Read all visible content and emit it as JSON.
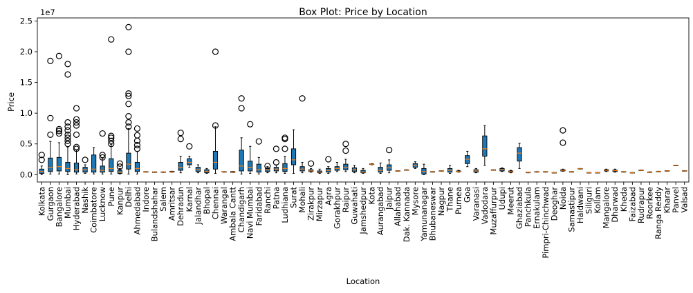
{
  "chart_data": {
    "type": "box",
    "title": "Box Plot: Price by Location",
    "xlabel": "Location",
    "ylabel": "Price",
    "y_offset_label": "1e7",
    "ylim": [
      -1200000,
      25500000
    ],
    "y_ticks": [
      0,
      5000000,
      10000000,
      15000000,
      20000000,
      25000000
    ],
    "y_tick_labels": [
      "0.0",
      "0.5",
      "1.0",
      "1.5",
      "2.0",
      "2.5"
    ],
    "grid": false,
    "colors": {
      "box": "#1f77b4",
      "median": "#ff7f0e",
      "whisker": "#000000",
      "flier": "#000000"
    },
    "categories": [
      "Kolkata",
      "Gurgaon",
      "Bangalore",
      "Mumbai",
      "Hyderabad",
      "Nashik",
      "Coimbatore",
      "Lucknow",
      "Pune",
      "Kanpur",
      "Delhi",
      "Ahmedabad",
      "Indore",
      "Bulandshahar",
      "Salem",
      "Amritsar",
      "Dehradun",
      "Karnal",
      "Jalandhar",
      "Bhopal",
      "Chennai",
      "Warangal",
      "Ambala Cantt",
      "Chandigarh",
      "Navi Mumbai",
      "Faridabad",
      "Ranchi",
      "Patna",
      "Ludhiana",
      "Surat",
      "Mohali",
      "Zirakpur",
      "Mirzapur",
      "Agra",
      "Gorakhpur",
      "Raipur",
      "Guwahati",
      "Jamshedpur",
      "Kota",
      "Aurangabad",
      "Jaipur",
      "Allahabad",
      "Dak. Kannada",
      "Mysore",
      "Yamunanagar",
      "Bhubaneswar",
      "Nagpur",
      "Thane",
      "Purnea",
      "Goa",
      "Varanasi",
      "Vadodara",
      "Muzaffurpur",
      "Udupi",
      "Meerut",
      "Ghaziabad",
      "Panchkula",
      "Ernakulam",
      "Pimpri-Chinchwad",
      "Deoghar",
      "Noida",
      "Samastipur",
      "Haldwani",
      "Siliguri",
      "Kollam",
      "Mangalore",
      "Dharwad",
      "Kheda",
      "Faizabad",
      "Rudrapur",
      "Roorkee",
      "Ranga Reddy",
      "Kharar",
      "Panvel",
      "Valsad"
    ],
    "boxes": [
      {
        "wl": 0,
        "q1": 200000,
        "med": 500000,
        "q3": 900000,
        "wh": 1400000,
        "fliers": [
          2400000,
          3200000
        ]
      },
      {
        "wl": 100000,
        "q1": 500000,
        "med": 1200000,
        "q3": 2700000,
        "wh": 5400000,
        "fliers": [
          6500000,
          9200000,
          18500000
        ]
      },
      {
        "wl": 100000,
        "q1": 600000,
        "med": 1300000,
        "q3": 2800000,
        "wh": 5200000,
        "fliers": [
          6700000,
          7100000,
          7400000,
          19300000
        ]
      },
      {
        "wl": 0,
        "q1": 500000,
        "med": 1000000,
        "q3": 2000000,
        "wh": 4500000,
        "fliers": [
          5000000,
          5500000,
          6000000,
          6500000,
          7200000,
          7800000,
          8500000,
          16300000,
          18000000
        ]
      },
      {
        "wl": 100000,
        "q1": 400000,
        "med": 800000,
        "q3": 1900000,
        "wh": 4000000,
        "fliers": [
          4200000,
          4500000,
          6500000,
          8000000,
          8500000,
          9000000,
          10800000
        ]
      },
      {
        "wl": 200000,
        "q1": 400000,
        "med": 800000,
        "q3": 1200000,
        "wh": 1600000,
        "fliers": [
          2400000
        ]
      },
      {
        "wl": 100000,
        "q1": 400000,
        "med": 900000,
        "q3": 3200000,
        "wh": 4400000,
        "fliers": []
      },
      {
        "wl": 100000,
        "q1": 400000,
        "med": 700000,
        "q3": 1400000,
        "wh": 2600000,
        "fliers": [
          2800000,
          3200000,
          6700000
        ]
      },
      {
        "wl": 100000,
        "q1": 500000,
        "med": 1000000,
        "q3": 2600000,
        "wh": 4900000,
        "fliers": [
          5000000,
          5500000,
          6000000,
          6300000,
          22000000
        ]
      },
      {
        "wl": 100000,
        "q1": 200000,
        "med": 400000,
        "q3": 700000,
        "wh": 1000000,
        "fliers": [
          1300000,
          1800000
        ]
      },
      {
        "wl": 100000,
        "q1": 900000,
        "med": 1700000,
        "q3": 3500000,
        "wh": 7500000,
        "fliers": [
          7800000,
          8500000,
          9500000,
          11500000,
          12800000,
          13200000,
          20000000,
          24000000
        ]
      },
      {
        "wl": 100000,
        "q1": 500000,
        "med": 1000000,
        "q3": 2000000,
        "wh": 3800000,
        "fliers": [
          4200000,
          4800000,
          5500000,
          6400000,
          7500000
        ]
      },
      {
        "wl": 400000,
        "q1": 400000,
        "med": 450000,
        "q3": 500000,
        "wh": 500000,
        "fliers": []
      },
      {
        "wl": 350000,
        "q1": 350000,
        "med": 400000,
        "q3": 450000,
        "wh": 450000,
        "fliers": []
      },
      {
        "wl": 350000,
        "q1": 350000,
        "med": 400000,
        "q3": 450000,
        "wh": 450000,
        "fliers": []
      },
      {
        "wl": 400000,
        "q1": 400000,
        "med": 450000,
        "q3": 550000,
        "wh": 550000,
        "fliers": []
      },
      {
        "wl": 300000,
        "q1": 700000,
        "med": 1200000,
        "q3": 2000000,
        "wh": 3000000,
        "fliers": [
          5800000,
          6800000
        ]
      },
      {
        "wl": 1200000,
        "q1": 1600000,
        "med": 2000000,
        "q3": 2600000,
        "wh": 3000000,
        "fliers": [
          4600000
        ]
      },
      {
        "wl": 300000,
        "q1": 500000,
        "med": 800000,
        "q3": 1200000,
        "wh": 1600000,
        "fliers": []
      },
      {
        "wl": 200000,
        "q1": 300000,
        "med": 500000,
        "q3": 800000,
        "wh": 1000000,
        "fliers": []
      },
      {
        "wl": 200000,
        "q1": 900000,
        "med": 2000000,
        "q3": 3800000,
        "wh": 7800000,
        "fliers": [
          8000000,
          20000000
        ]
      },
      {
        "wl": 400000,
        "q1": 400000,
        "med": 450000,
        "q3": 500000,
        "wh": 500000,
        "fliers": []
      },
      {
        "wl": 350000,
        "q1": 350000,
        "med": 400000,
        "q3": 500000,
        "wh": 500000,
        "fliers": []
      },
      {
        "wl": 100000,
        "q1": 600000,
        "med": 1400000,
        "q3": 4000000,
        "wh": 6000000,
        "fliers": [
          10800000,
          12400000
        ]
      },
      {
        "wl": 200000,
        "q1": 600000,
        "med": 1200000,
        "q3": 2200000,
        "wh": 4600000,
        "fliers": [
          8200000
        ]
      },
      {
        "wl": 100000,
        "q1": 400000,
        "med": 800000,
        "q3": 1700000,
        "wh": 2800000,
        "fliers": [
          5400000
        ]
      },
      {
        "wl": 300000,
        "q1": 500000,
        "med": 800000,
        "q3": 1100000,
        "wh": 1300000,
        "fliers": [
          1400000
        ]
      },
      {
        "wl": 300000,
        "q1": 600000,
        "med": 900000,
        "q3": 1200000,
        "wh": 1600000,
        "fliers": [
          2000000,
          4200000
        ]
      },
      {
        "wl": 200000,
        "q1": 500000,
        "med": 1000000,
        "q3": 1800000,
        "wh": 3000000,
        "fliers": [
          4200000,
          5800000,
          6000000
        ]
      },
      {
        "wl": 200000,
        "q1": 1600000,
        "med": 2400000,
        "q3": 4200000,
        "wh": 7300000,
        "fliers": []
      },
      {
        "wl": 300000,
        "q1": 600000,
        "med": 900000,
        "q3": 1300000,
        "wh": 2000000,
        "fliers": [
          12400000
        ]
      },
      {
        "wl": 400000,
        "q1": 500000,
        "med": 600000,
        "q3": 800000,
        "wh": 1000000,
        "fliers": [
          1800000
        ]
      },
      {
        "wl": 200000,
        "q1": 300000,
        "med": 400000,
        "q3": 600000,
        "wh": 900000,
        "fliers": []
      },
      {
        "wl": 200000,
        "q1": 400000,
        "med": 700000,
        "q3": 1000000,
        "wh": 1300000,
        "fliers": [
          2500000
        ]
      },
      {
        "wl": 500000,
        "q1": 700000,
        "med": 1000000,
        "q3": 1300000,
        "wh": 2000000,
        "fliers": []
      },
      {
        "wl": 500000,
        "q1": 800000,
        "med": 1200000,
        "q3": 1700000,
        "wh": 2500000,
        "fliers": [
          3900000,
          5000000
        ]
      },
      {
        "wl": 300000,
        "q1": 500000,
        "med": 800000,
        "q3": 1100000,
        "wh": 1500000,
        "fliers": []
      },
      {
        "wl": 200000,
        "q1": 300000,
        "med": 400000,
        "q3": 700000,
        "wh": 1000000,
        "fliers": []
      },
      {
        "wl": 1600000,
        "q1": 1650000,
        "med": 1700000,
        "q3": 1750000,
        "wh": 1800000,
        "fliers": []
      },
      {
        "wl": 200000,
        "q1": 400000,
        "med": 700000,
        "q3": 1200000,
        "wh": 1900000,
        "fliers": []
      },
      {
        "wl": 300000,
        "q1": 700000,
        "med": 1100000,
        "q3": 1600000,
        "wh": 2400000,
        "fliers": [
          4000000
        ]
      },
      {
        "wl": 550000,
        "q1": 550000,
        "med": 600000,
        "q3": 650000,
        "wh": 650000,
        "fliers": []
      },
      {
        "wl": 700000,
        "q1": 700000,
        "med": 750000,
        "q3": 800000,
        "wh": 800000,
        "fliers": []
      },
      {
        "wl": 1000000,
        "q1": 1200000,
        "med": 1500000,
        "q3": 1800000,
        "wh": 2100000,
        "fliers": []
      },
      {
        "wl": 0,
        "q1": 100000,
        "med": 500000,
        "q3": 1000000,
        "wh": 1700000,
        "fliers": []
      },
      {
        "wl": 400000,
        "q1": 400000,
        "med": 450000,
        "q3": 500000,
        "wh": 500000,
        "fliers": []
      },
      {
        "wl": 550000,
        "q1": 550000,
        "med": 600000,
        "q3": 650000,
        "wh": 650000,
        "fliers": []
      },
      {
        "wl": 200000,
        "q1": 400000,
        "med": 700000,
        "q3": 1000000,
        "wh": 1500000,
        "fliers": []
      },
      {
        "wl": 400000,
        "q1": 450000,
        "med": 500000,
        "q3": 600000,
        "wh": 700000,
        "fliers": []
      },
      {
        "wl": 1300000,
        "q1": 1800000,
        "med": 2500000,
        "q3": 3100000,
        "wh": 3800000,
        "fliers": []
      },
      {
        "wl": 300000,
        "q1": 400000,
        "med": 600000,
        "q3": 800000,
        "wh": 1000000,
        "fliers": []
      },
      {
        "wl": 1500000,
        "q1": 3000000,
        "med": 4200000,
        "q3": 6300000,
        "wh": 8000000,
        "fliers": []
      },
      {
        "wl": 700000,
        "q1": 700000,
        "med": 750000,
        "q3": 800000,
        "wh": 800000,
        "fliers": []
      },
      {
        "wl": 500000,
        "q1": 600000,
        "med": 800000,
        "q3": 1000000,
        "wh": 1100000,
        "fliers": []
      },
      {
        "wl": 300000,
        "q1": 400000,
        "med": 500000,
        "q3": 600000,
        "wh": 700000,
        "fliers": []
      },
      {
        "wl": 1000000,
        "q1": 2200000,
        "med": 3500000,
        "q3": 4400000,
        "wh": 5100000,
        "fliers": []
      },
      {
        "wl": 300000,
        "q1": 300000,
        "med": 350000,
        "q3": 400000,
        "wh": 400000,
        "fliers": []
      },
      {
        "wl": 400000,
        "q1": 400000,
        "med": 450000,
        "q3": 500000,
        "wh": 500000,
        "fliers": []
      },
      {
        "wl": 400000,
        "q1": 400000,
        "med": 450000,
        "q3": 500000,
        "wh": 500000,
        "fliers": []
      },
      {
        "wl": 250000,
        "q1": 250000,
        "med": 300000,
        "q3": 350000,
        "wh": 350000,
        "fliers": []
      },
      {
        "wl": 550000,
        "q1": 600000,
        "med": 700000,
        "q3": 800000,
        "wh": 900000,
        "fliers": [
          5200000,
          7200000
        ]
      },
      {
        "wl": 400000,
        "q1": 400000,
        "med": 450000,
        "q3": 500000,
        "wh": 500000,
        "fliers": []
      },
      {
        "wl": 900000,
        "q1": 900000,
        "med": 950000,
        "q3": 1000000,
        "wh": 1000000,
        "fliers": []
      },
      {
        "wl": 250000,
        "q1": 250000,
        "med": 300000,
        "q3": 350000,
        "wh": 350000,
        "fliers": []
      },
      {
        "wl": 250000,
        "q1": 250000,
        "med": 300000,
        "q3": 350000,
        "wh": 350000,
        "fliers": []
      },
      {
        "wl": 500000,
        "q1": 600000,
        "med": 700000,
        "q3": 800000,
        "wh": 900000,
        "fliers": []
      },
      {
        "wl": 400000,
        "q1": 500000,
        "med": 650000,
        "q3": 750000,
        "wh": 900000,
        "fliers": []
      },
      {
        "wl": 400000,
        "q1": 400000,
        "med": 450000,
        "q3": 500000,
        "wh": 500000,
        "fliers": []
      },
      {
        "wl": 250000,
        "q1": 250000,
        "med": 300000,
        "q3": 350000,
        "wh": 350000,
        "fliers": []
      },
      {
        "wl": 650000,
        "q1": 650000,
        "med": 700000,
        "q3": 750000,
        "wh": 750000,
        "fliers": []
      },
      {
        "wl": 350000,
        "q1": 350000,
        "med": 400000,
        "q3": 450000,
        "wh": 450000,
        "fliers": []
      },
      {
        "wl": 450000,
        "q1": 450000,
        "med": 500000,
        "q3": 550000,
        "wh": 550000,
        "fliers": []
      },
      {
        "wl": 550000,
        "q1": 550000,
        "med": 600000,
        "q3": 650000,
        "wh": 650000,
        "fliers": []
      },
      {
        "wl": 1450000,
        "q1": 1450000,
        "med": 1500000,
        "q3": 1550000,
        "wh": 1550000,
        "fliers": []
      },
      {
        "wl": 550000,
        "q1": 550000,
        "med": 600000,
        "q3": 650000,
        "wh": 650000,
        "fliers": []
      }
    ]
  }
}
